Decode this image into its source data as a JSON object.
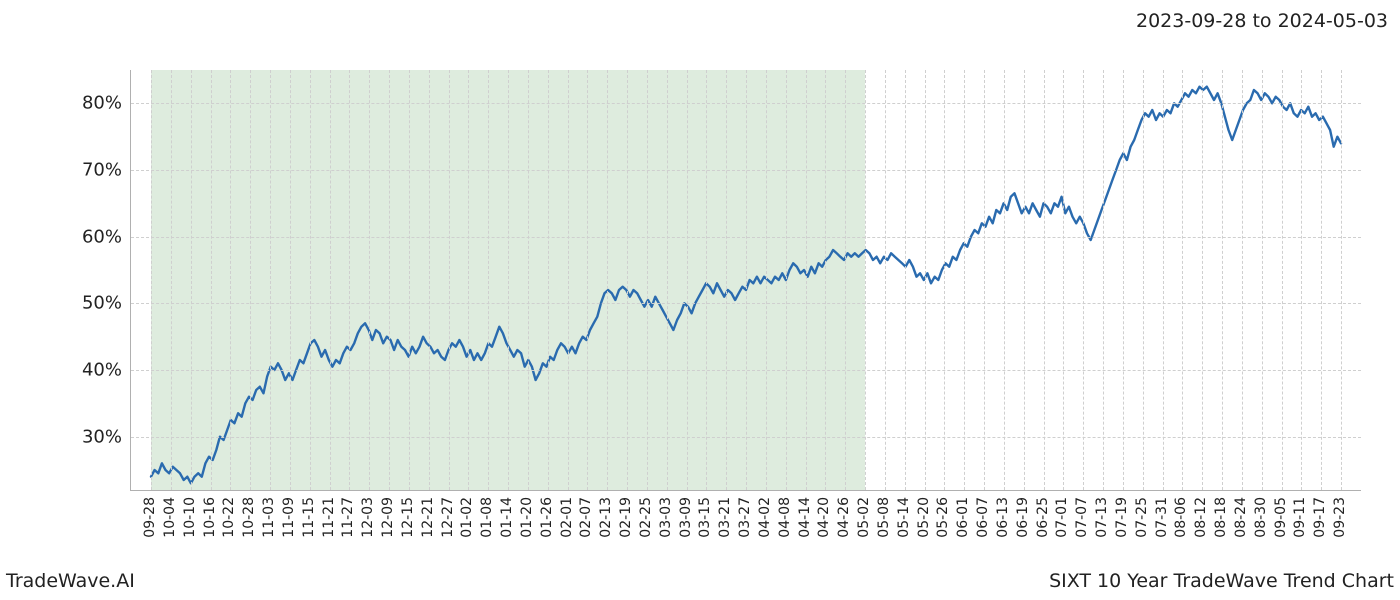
{
  "header": {
    "date_range": "2023-09-28 to 2024-05-03"
  },
  "footer": {
    "left": "TradeWave.AI",
    "right": "SIXT 10 Year TradeWave Trend Chart"
  },
  "chart": {
    "type": "line",
    "background_color": "#ffffff",
    "grid_color": "#cfcfcf",
    "axis_color": "#b0b0b0",
    "line_color": "#2a6baf",
    "line_width": 2.4,
    "highlight_color": "rgba(195,221,195,0.55)",
    "ylim": [
      22,
      85
    ],
    "yticks": [
      30,
      40,
      50,
      60,
      70,
      80
    ],
    "ytick_format": "%",
    "xticks": [
      "09-28",
      "10-04",
      "10-10",
      "10-16",
      "10-22",
      "10-28",
      "11-03",
      "11-09",
      "11-15",
      "11-21",
      "11-27",
      "12-03",
      "12-09",
      "12-15",
      "12-21",
      "12-27",
      "01-02",
      "01-08",
      "01-14",
      "01-20",
      "01-26",
      "02-01",
      "02-07",
      "02-13",
      "02-19",
      "02-25",
      "03-03",
      "03-09",
      "03-15",
      "03-21",
      "03-27",
      "04-02",
      "04-08",
      "04-14",
      "04-20",
      "04-26",
      "05-02",
      "05-08",
      "05-14",
      "05-20",
      "05-26",
      "06-01",
      "06-07",
      "06-13",
      "06-19",
      "06-25",
      "07-01",
      "07-07",
      "07-13",
      "07-19",
      "07-25",
      "07-31",
      "08-06",
      "08-12",
      "08-18",
      "08-24",
      "08-30",
      "09-05",
      "09-11",
      "09-17",
      "09-23"
    ],
    "highlight_range": [
      0,
      36
    ],
    "label_fontsize": 18,
    "xtick_fontsize": 14,
    "series": [
      24,
      25,
      24.5,
      26,
      25,
      24.5,
      25.5,
      25,
      24.5,
      23.5,
      24,
      23,
      24,
      24.5,
      24,
      26,
      27,
      26.5,
      28,
      30,
      29.5,
      31,
      32.5,
      32,
      33.5,
      33,
      35,
      36,
      35.5,
      37,
      37.5,
      36.5,
      39,
      40.5,
      40,
      41,
      40,
      38.5,
      39.5,
      38.5,
      40,
      41.5,
      41,
      42.5,
      44,
      44.5,
      43.5,
      42,
      43,
      41.5,
      40.5,
      41.5,
      41,
      42.5,
      43.5,
      43,
      44,
      45.5,
      46.5,
      47,
      46,
      44.5,
      46,
      45.5,
      44,
      45,
      44.5,
      43,
      44.5,
      43.5,
      43,
      42,
      43.5,
      42.5,
      43.5,
      45,
      44,
      43.5,
      42.5,
      43,
      42,
      41.5,
      43,
      44,
      43.5,
      44.5,
      43.5,
      42,
      43,
      41.5,
      42.5,
      41.5,
      42.5,
      44,
      43.5,
      45,
      46.5,
      45.5,
      44,
      43,
      42,
      43,
      42.5,
      40.5,
      41.5,
      40.5,
      38.5,
      39.5,
      41,
      40.5,
      42,
      41.5,
      43,
      44,
      43.5,
      42.5,
      43.5,
      42.5,
      44,
      45,
      44.5,
      46,
      47,
      48,
      50,
      51.5,
      52,
      51.5,
      50.5,
      52,
      52.5,
      52,
      51,
      52,
      51.5,
      50.5,
      49.5,
      50.5,
      49.5,
      51,
      50,
      49,
      48,
      47,
      46,
      47.5,
      48.5,
      50,
      49.5,
      48.5,
      50,
      51,
      52,
      53,
      52.5,
      51.5,
      53,
      52,
      51,
      52,
      51.5,
      50.5,
      51.5,
      52.5,
      52,
      53.5,
      53,
      54,
      53,
      54,
      53.5,
      53,
      54,
      53.5,
      54.5,
      53.5,
      55,
      56,
      55.5,
      54.5,
      55,
      54,
      55.5,
      54.5,
      56,
      55.5,
      56.5,
      57,
      58,
      57.5,
      57,
      56.5,
      57.5,
      57,
      57.5,
      57,
      57.5,
      58,
      57.5,
      56.5,
      57,
      56,
      57,
      56.5,
      57.5,
      57,
      56.5,
      56,
      55.5,
      56.5,
      55.5,
      54,
      54.5,
      53.5,
      54.5,
      53,
      54,
      53.5,
      55,
      56,
      55.5,
      57,
      56.5,
      58,
      59,
      58.5,
      60,
      61,
      60.5,
      62,
      61.5,
      63,
      62,
      64,
      63.5,
      65,
      64,
      66,
      66.5,
      65,
      63.5,
      64.5,
      63.5,
      65,
      64,
      63,
      65,
      64.5,
      63.5,
      65,
      64.5,
      66,
      63.5,
      64.5,
      63,
      62,
      63,
      62,
      60.5,
      59.5,
      61,
      62.5,
      64,
      65.5,
      67,
      68.5,
      70,
      71.5,
      72.5,
      71.5,
      73.5,
      74.5,
      76,
      77.5,
      78.5,
      78,
      79,
      77.5,
      78.5,
      78,
      79,
      78.5,
      80,
      79.5,
      80.5,
      81.5,
      81,
      82,
      81.5,
      82.5,
      82,
      82.5,
      81.5,
      80.5,
      81.5,
      80,
      78,
      76,
      74.5,
      76,
      77.5,
      79,
      80,
      80.5,
      82,
      81.5,
      80.5,
      81.5,
      81,
      80,
      81,
      80.5,
      79.5,
      79,
      80,
      78.5,
      78,
      79,
      78.5,
      79.5,
      78,
      78.5,
      77.5,
      78,
      77,
      76,
      73.5,
      75,
      74
    ]
  }
}
